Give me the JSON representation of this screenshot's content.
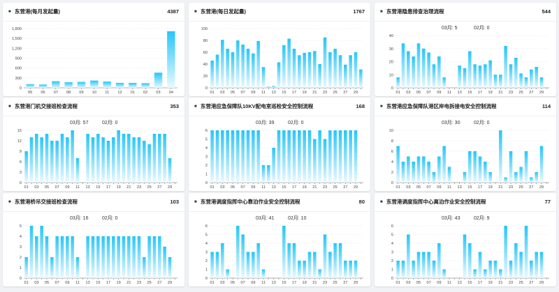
{
  "cards": [
    {
      "title": "东营港(每月发起量)",
      "count": "4387",
      "sub": null,
      "chart_data": {
        "type": "bar",
        "ylim": [
          0,
          1800
        ],
        "yticks": [
          "0",
          "300",
          "600",
          "900",
          "1,200",
          "1,500",
          "1,800"
        ],
        "categories": [
          "05",
          "06",
          "07",
          "08",
          "09",
          "10",
          "11",
          "12",
          "01",
          "02",
          "03",
          "04"
        ],
        "values": [
          110,
          100,
          200,
          170,
          180,
          220,
          190,
          150,
          150,
          140,
          460,
          1720
        ]
      }
    },
    {
      "title": "东营港(每日发起量)",
      "count": "1767",
      "sub": null,
      "chart_data": {
        "type": "bar",
        "ylim": [
          0,
          100
        ],
        "yticks": [
          "0",
          "20",
          "40",
          "60",
          "80",
          "100"
        ],
        "labelstep": 2,
        "label_offset": 1,
        "start": 1,
        "categories": [
          "01",
          "02",
          "03",
          "04",
          "05",
          "06",
          "07",
          "08",
          "09",
          "10",
          "11",
          "12",
          "13",
          "14",
          "15",
          "16",
          "17",
          "18",
          "19",
          "20",
          "21",
          "22",
          "23",
          "24",
          "25",
          "26",
          "27",
          "28",
          "29",
          "30"
        ],
        "values": [
          46,
          56,
          81,
          66,
          60,
          80,
          73,
          66,
          58,
          79,
          35,
          2,
          3,
          43,
          72,
          83,
          66,
          55,
          59,
          60,
          62,
          40,
          85,
          60,
          66,
          55,
          39,
          55,
          60,
          31
        ]
      }
    },
    {
      "title": "东营港隐患排查治理流程",
      "count": "544",
      "sub": {
        "m3": "03月:  5",
        "m2": "02月:  0"
      },
      "chart_data": {
        "type": "bar",
        "ylim": [
          0,
          40
        ],
        "yticks": [
          "0",
          "10",
          "20",
          "30",
          "40"
        ],
        "labelstep": 2,
        "start": 1,
        "categories": [
          "01",
          "02",
          "03",
          "04",
          "05",
          "06",
          "07",
          "08",
          "09",
          "10",
          "11",
          "12",
          "13",
          "14",
          "15",
          "16",
          "17",
          "18",
          "19",
          "20",
          "21",
          "22",
          "23",
          "24",
          "25",
          "26",
          "27",
          "28",
          "29",
          "30"
        ],
        "values": [
          8,
          34,
          28,
          24,
          34,
          30,
          27,
          18,
          24,
          8,
          0,
          0,
          17,
          15,
          28,
          18,
          17,
          18,
          21,
          10,
          10,
          32,
          18,
          23,
          11,
          8,
          14,
          16,
          8,
          0
        ]
      }
    },
    {
      "title": "东营港门机交接班检查流程",
      "count": "353",
      "sub": {
        "m3": "03月:  57",
        "m2": "02月:  0"
      },
      "chart_data": {
        "type": "bar",
        "ylim": [
          0,
          15
        ],
        "yticks": [
          "0",
          "3",
          "6",
          "9",
          "12",
          "15"
        ],
        "labelstep": 2,
        "start": 1,
        "categories": [
          "01",
          "02",
          "03",
          "04",
          "05",
          "06",
          "07",
          "08",
          "09",
          "10",
          "11",
          "12",
          "13",
          "14",
          "15",
          "16",
          "17",
          "18",
          "19",
          "20",
          "21",
          "22",
          "23",
          "24",
          "25",
          "26",
          "27",
          "28",
          "29",
          "30"
        ],
        "values": [
          9,
          13,
          14,
          13,
          14,
          12,
          12,
          14,
          13,
          15,
          7,
          0,
          14,
          13,
          14,
          13,
          12,
          13,
          15,
          14,
          14,
          13,
          13,
          12,
          11,
          14,
          14,
          14,
          7,
          0
        ]
      }
    },
    {
      "title": "东营港应急保障队10KV配电室巡检安全控制流程",
      "count": "168",
      "sub": {
        "m3": "03月:  39",
        "m2": "02月:  0"
      },
      "chart_data": {
        "type": "bar",
        "ylim": [
          0,
          6
        ],
        "yticks": [
          "0",
          "1",
          "2",
          "3",
          "4",
          "5",
          "6"
        ],
        "labelstep": 2,
        "start": 1,
        "categories": [
          "01",
          "02",
          "03",
          "04",
          "05",
          "06",
          "07",
          "08",
          "09",
          "10",
          "11",
          "12",
          "13",
          "14",
          "15",
          "16",
          "17",
          "18",
          "19",
          "20",
          "21",
          "22",
          "23",
          "24",
          "25",
          "26",
          "27",
          "28",
          "29",
          "30"
        ],
        "values": [
          6,
          6,
          6,
          6,
          6,
          6,
          6,
          6,
          6,
          6,
          2,
          2,
          4,
          6,
          6,
          6,
          6,
          6,
          6,
          6,
          5,
          6,
          5,
          6,
          6,
          6,
          6,
          6,
          6,
          0
        ]
      }
    },
    {
      "title": "东营港应急保障队港区岸电拆接电安全控制流程",
      "count": "114",
      "sub": {
        "m3": "03月:  30",
        "m2": "02月:  0"
      },
      "chart_data": {
        "type": "bar",
        "ylim": [
          0,
          10
        ],
        "yticks": [
          "0",
          "2",
          "4",
          "6",
          "8",
          "10"
        ],
        "labelstep": 2,
        "start": 1,
        "categories": [
          "01",
          "02",
          "03",
          "04",
          "05",
          "06",
          "07",
          "08",
          "09",
          "10",
          "11",
          "12",
          "13",
          "14",
          "15",
          "16",
          "17",
          "18",
          "19",
          "20",
          "21",
          "22",
          "23",
          "24",
          "25",
          "26",
          "27",
          "28",
          "29",
          "30"
        ],
        "values": [
          7,
          4,
          5,
          4,
          5,
          5,
          4,
          2,
          5,
          7,
          3,
          0,
          0,
          2,
          6,
          6,
          5,
          4,
          2,
          0,
          10,
          1,
          6,
          2,
          3,
          6,
          1,
          2,
          7,
          0
        ]
      }
    },
    {
      "title": "东营港桥吊交接班检查流程",
      "count": "103",
      "sub": {
        "m3": "03月:  16",
        "m2": "02月:  0"
      },
      "chart_data": {
        "type": "bar",
        "ylim": [
          0,
          5
        ],
        "yticks": [
          "0",
          "1",
          "2",
          "3",
          "4",
          "5"
        ],
        "labelstep": 2,
        "start": 1,
        "categories": [
          "01",
          "02",
          "03",
          "04",
          "05",
          "06",
          "07",
          "08",
          "09",
          "10",
          "11",
          "12",
          "13",
          "14",
          "15",
          "16",
          "17",
          "18",
          "19",
          "20",
          "21",
          "22",
          "23",
          "24",
          "25",
          "26",
          "27",
          "28",
          "29",
          "30"
        ],
        "values": [
          2,
          5,
          4,
          5,
          4,
          2,
          4,
          4,
          4,
          4,
          2,
          0,
          4,
          4,
          4,
          4,
          4,
          4,
          4,
          4,
          4,
          4,
          4,
          2,
          4,
          4,
          4,
          3,
          2,
          0
        ]
      }
    },
    {
      "title": "东营港调度指挥中心靠泊作业安全控制流程",
      "count": "80",
      "sub": {
        "m3": "03月:  41",
        "m2": "02月:  10"
      },
      "chart_data": {
        "type": "bar",
        "ylim": [
          0,
          6
        ],
        "yticks": [
          "0",
          "1",
          "2",
          "3",
          "4",
          "5",
          "6"
        ],
        "labelstep": 2,
        "start": 1,
        "categories": [
          "01",
          "02",
          "03",
          "04",
          "05",
          "06",
          "07",
          "08",
          "09",
          "10",
          "11",
          "12",
          "13",
          "14",
          "15",
          "16",
          "17",
          "18",
          "19",
          "20",
          "21",
          "22",
          "23",
          "24",
          "25",
          "26",
          "27",
          "28",
          "29",
          "30"
        ],
        "values": [
          3,
          3,
          4,
          1,
          0,
          6,
          5,
          3,
          3,
          4,
          1,
          0,
          0,
          0,
          6,
          4,
          4,
          2,
          2,
          3,
          3,
          1,
          5,
          3,
          4,
          4,
          2,
          2,
          2,
          0
        ]
      }
    },
    {
      "title": "东营港调度指挥中心离泊作业安全控制流程",
      "count": "77",
      "sub": {
        "m3": "03月:  43",
        "m2": "02月:  9"
      },
      "chart_data": {
        "type": "bar",
        "ylim": [
          0,
          6
        ],
        "yticks": [
          "0",
          "1",
          "2",
          "3",
          "4",
          "5",
          "6"
        ],
        "labelstep": 2,
        "start": 1,
        "categories": [
          "01",
          "02",
          "03",
          "04",
          "05",
          "06",
          "07",
          "08",
          "09",
          "10",
          "11",
          "12",
          "13",
          "14",
          "15",
          "16",
          "17",
          "18",
          "19",
          "20",
          "21",
          "22",
          "23",
          "24",
          "25",
          "26",
          "27",
          "28",
          "29",
          "30"
        ],
        "values": [
          2,
          2,
          5,
          2,
          3,
          3,
          3,
          2,
          4,
          1,
          0,
          0,
          0,
          5,
          4,
          1,
          3,
          1,
          2,
          2,
          1,
          6,
          2,
          4,
          3,
          6,
          2,
          3,
          3,
          0
        ]
      }
    }
  ]
}
